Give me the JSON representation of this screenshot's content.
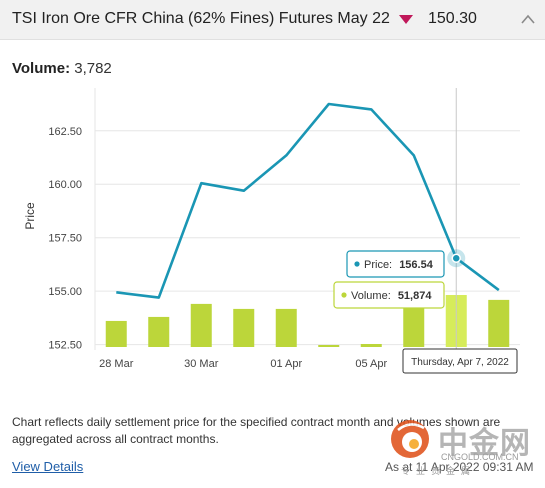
{
  "header": {
    "title": "TSI Iron Ore CFR China (62% Fines) Futures May 22",
    "trend_icon": "triangle-down-icon",
    "price": "150.30",
    "collapse_icon": "chevron-up-icon"
  },
  "volume": {
    "label": "Volume:",
    "value": "3,782"
  },
  "chart_data": {
    "type": "line",
    "ylabel": "Price",
    "ylim": [
      152.25,
      164.5
    ],
    "yticks": [
      "152.50",
      "155.00",
      "157.50",
      "160.00",
      "162.50"
    ],
    "x_tick_labels": [
      "28 Mar",
      "30 Mar",
      "01 Apr",
      "05 Apr",
      "07 Apr"
    ],
    "x": [
      "28 Mar",
      "29 Mar",
      "30 Mar",
      "31 Mar",
      "01 Apr",
      "04 Apr",
      "05 Apr",
      "06 Apr",
      "07 Apr",
      "08 Apr"
    ],
    "series": [
      {
        "values": [
          154.95,
          154.7,
          160.05,
          159.7,
          161.35,
          163.75,
          163.5,
          161.35,
          156.54,
          155.05
        ]
      }
    ],
    "volume_series": {
      "values": [
        26000,
        30000,
        43000,
        38000,
        38000,
        2000,
        3000,
        46000,
        51874,
        47000
      ]
    },
    "tooltip": {
      "price_label": "Price:",
      "price_value": "156.54",
      "volume_label": "Volume:",
      "volume_value": "51,874",
      "date": "Thursday, Apr 7, 2022"
    },
    "colors": {
      "line": "#1a96b4",
      "bar": "#bcd63a",
      "bar_highlight": "#d6ec5a",
      "price_border": "#1a96b4",
      "volume_border": "#bcd63a"
    }
  },
  "footnote": "Chart reflects daily settlement price for the specified contract month and volumes shown are aggregated across all contract months.",
  "view_details": "View Details",
  "as_at": "As at 11 Apr 2022 09:31 AM",
  "watermark": {
    "text": "中金网",
    "domain": "CNGOLD.COM.CN",
    "tagline": "专业贵金属"
  }
}
